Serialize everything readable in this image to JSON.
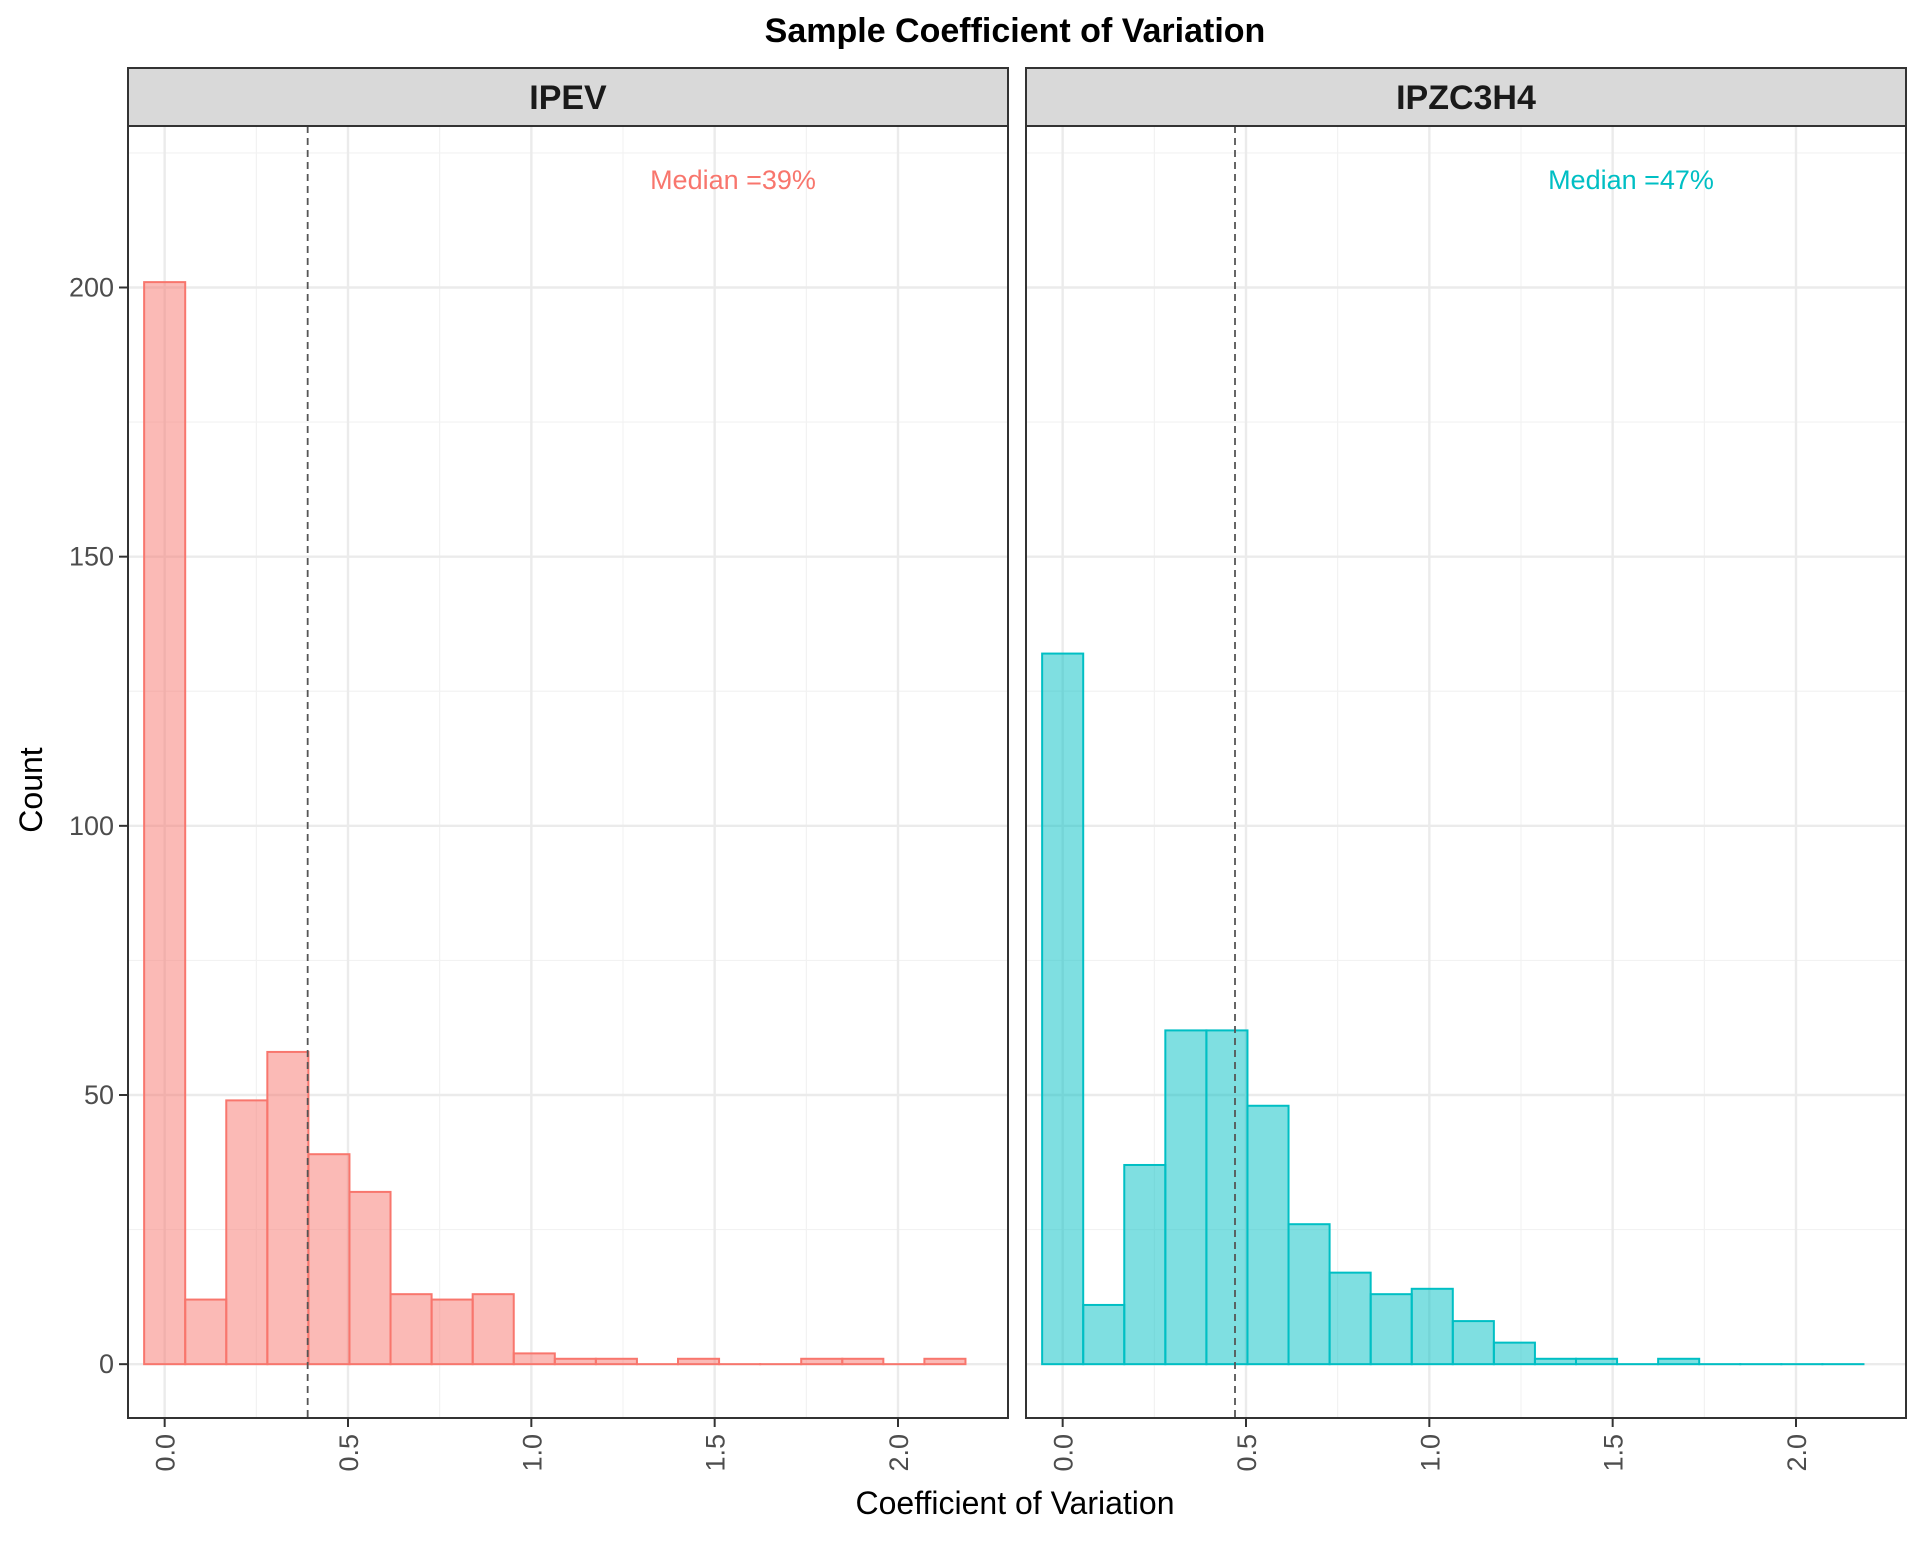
{
  "chart_data": {
    "type": "bar",
    "subtype": "faceted-histogram",
    "title": "Sample Coefficient of Variation",
    "xlabel": "Coefficient of Variation",
    "ylabel": "Count",
    "xlim": [
      -0.1,
      2.3
    ],
    "ylim": [
      -10,
      230
    ],
    "x_ticks": [
      0.0,
      0.5,
      1.0,
      1.5,
      2.0
    ],
    "x_tick_labels": [
      "0.0",
      "0.5",
      "1.0",
      "1.5",
      "2.0"
    ],
    "y_ticks": [
      0,
      50,
      100,
      150,
      200
    ],
    "y_tick_labels": [
      "0",
      "50",
      "100",
      "150",
      "200"
    ],
    "bin_edges": [
      -0.056,
      0.056,
      0.168,
      0.28,
      0.392,
      0.504,
      0.616,
      0.728,
      0.84,
      0.952,
      1.064,
      1.176,
      1.288,
      1.4,
      1.512,
      1.624,
      1.736,
      1.848,
      1.96,
      2.072,
      2.184
    ],
    "grid": true,
    "legend": "none",
    "panels": [
      {
        "strip_label": "IPEV",
        "color": "#F8766D",
        "fill": "#F8766D",
        "median": 0.39,
        "median_label": "Median =39%",
        "counts": [
          201,
          12,
          49,
          58,
          39,
          32,
          13,
          12,
          13,
          2,
          1,
          1,
          0,
          1,
          0,
          0,
          1,
          1,
          0,
          1
        ]
      },
      {
        "strip_label": "IPZC3H4",
        "color": "#00BFC4",
        "fill": "#00BFC4",
        "median": 0.47,
        "median_label": "Median =47%",
        "counts": [
          132,
          11,
          37,
          62,
          62,
          48,
          26,
          17,
          13,
          14,
          8,
          4,
          1,
          1,
          0,
          1,
          0,
          0,
          0,
          0
        ]
      }
    ]
  }
}
